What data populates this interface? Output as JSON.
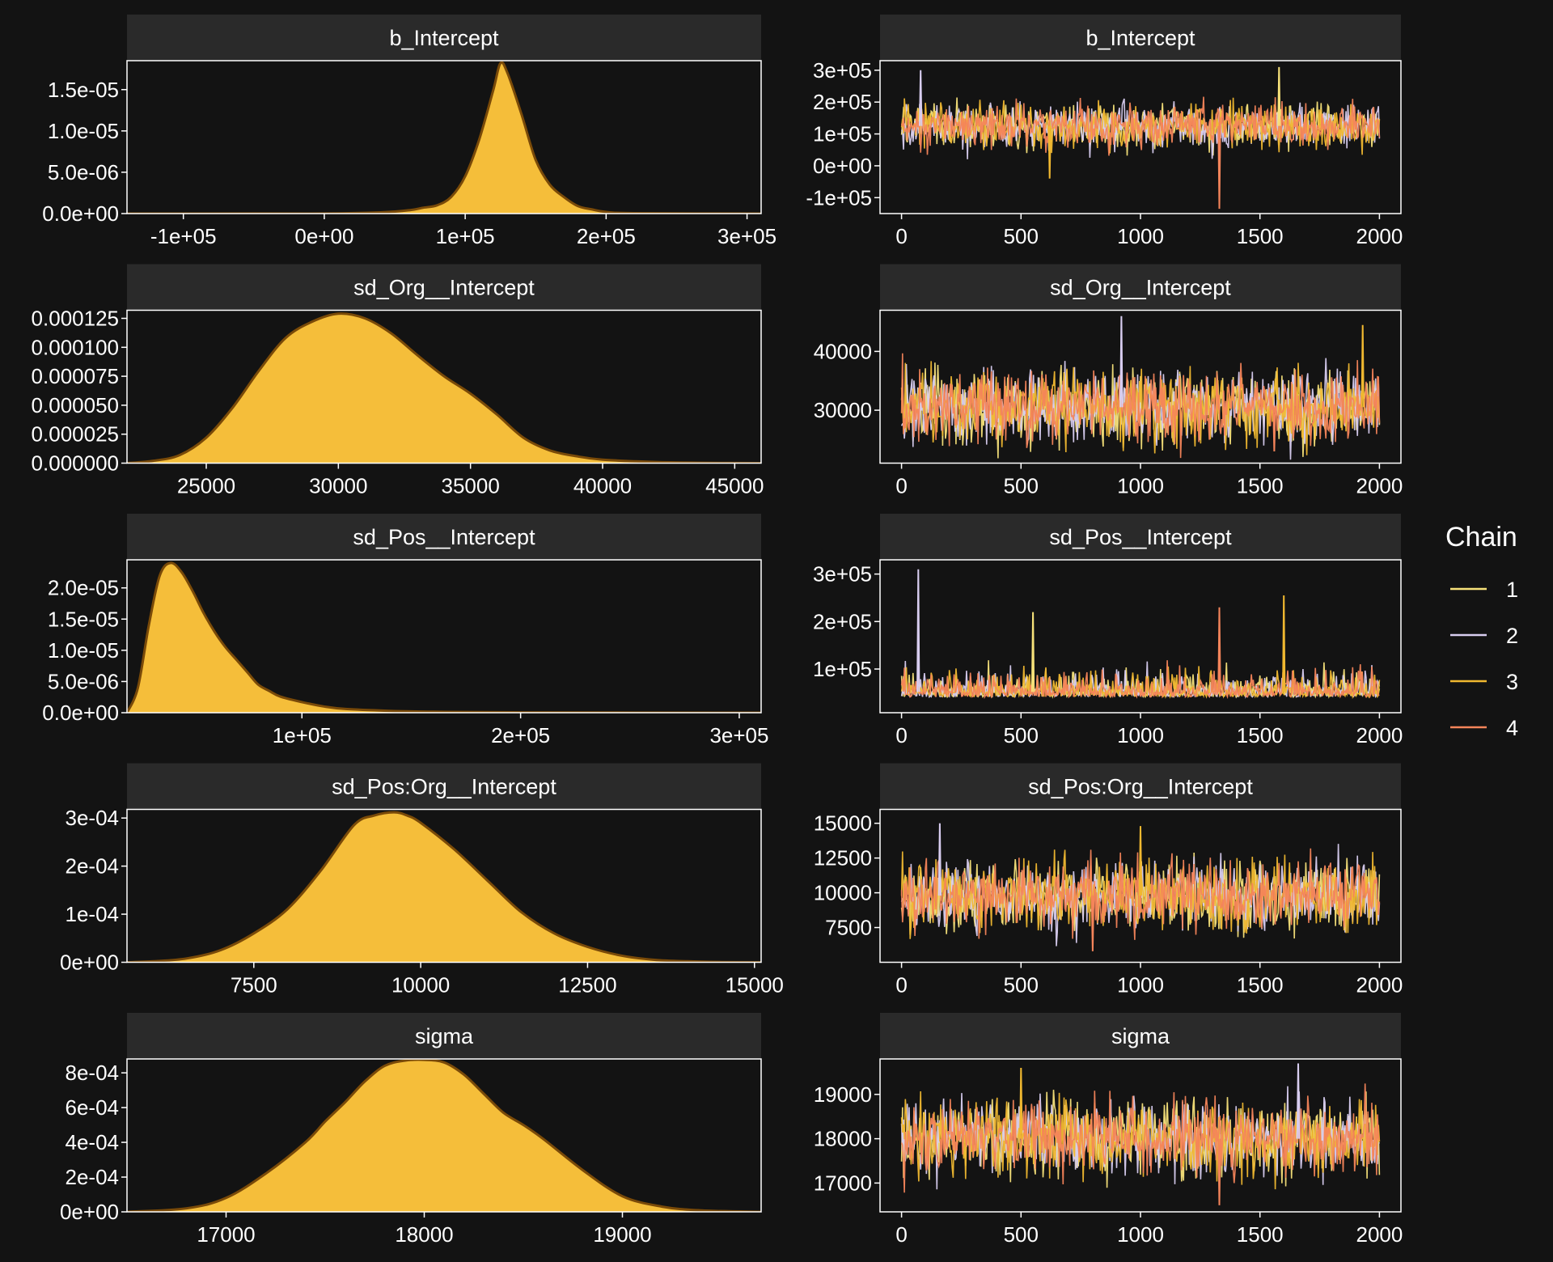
{
  "colors": {
    "background": "#131313",
    "strip": "#2a2a2a",
    "panel_border": "#ffffff",
    "density_fill": "#f5be3a",
    "density_line": "#7a4a08",
    "chain_colors": [
      "#f7e27a",
      "#d8cdf0",
      "#f0b830",
      "#f4845a"
    ]
  },
  "legend": {
    "title": "Chain",
    "entries": [
      "1",
      "2",
      "3",
      "4"
    ],
    "placement": "right"
  },
  "chart_data": [
    {
      "type": "area",
      "panel": "density",
      "title": "b_Intercept",
      "xlim": [
        -140000,
        310000
      ],
      "ylim": [
        0,
        1.85e-05
      ],
      "x_ticks": [
        -100000,
        0,
        100000,
        200000,
        300000
      ],
      "x_tick_labels": [
        "-1e+05",
        "0e+00",
        "1e+05",
        "2e+05",
        "3e+05"
      ],
      "y_ticks": [
        0,
        5e-06,
        1e-05,
        1.5e-05
      ],
      "y_tick_labels": [
        "0.0e+00",
        "5.0e-06",
        "1.0e-05",
        "1.5e-05"
      ],
      "x": [
        -140000,
        -50000,
        0,
        40000,
        60000,
        70000,
        80000,
        90000,
        100000,
        110000,
        120000,
        125000,
        130000,
        140000,
        150000,
        160000,
        170000,
        180000,
        190000,
        200000,
        220000,
        310000
      ],
      "y": [
        0,
        5e-09,
        1e-08,
        1.5e-07,
        4e-07,
        7e-07,
        1e-06,
        2e-06,
        4.5e-06,
        9e-06,
        1.5e-05,
        1.82e-05,
        1.7e-05,
        1.2e-05,
        6.5e-06,
        3.5e-06,
        2e-06,
        9e-07,
        5e-07,
        2e-07,
        5e-08,
        0
      ]
    },
    {
      "type": "line",
      "panel": "trace",
      "title": "b_Intercept",
      "xlim": [
        -90,
        2090
      ],
      "ylim": [
        -150000,
        330000
      ],
      "x_ticks": [
        0,
        500,
        1000,
        1500,
        2000
      ],
      "x_tick_labels": [
        "0",
        "500",
        "1000",
        "1500",
        "2000"
      ],
      "y_ticks": [
        -100000,
        0,
        100000,
        200000,
        300000
      ],
      "y_tick_labels": [
        "-1e+05",
        "0e+00",
        "1e+05",
        "2e+05",
        "3e+05"
      ],
      "iterations": 2000,
      "center": 125000,
      "spread": 35000,
      "spikes": [
        {
          "x": 80,
          "y": 300000
        },
        {
          "x": 620,
          "y": -40000
        },
        {
          "x": 1330,
          "y": -135000
        },
        {
          "x": 1580,
          "y": 310000
        }
      ]
    },
    {
      "type": "area",
      "panel": "density",
      "title": "sd_Org__Intercept",
      "xlim": [
        22000,
        46000
      ],
      "ylim": [
        0,
        0.000132
      ],
      "x_ticks": [
        25000,
        30000,
        35000,
        40000,
        45000
      ],
      "x_tick_labels": [
        "25000",
        "30000",
        "35000",
        "40000",
        "45000"
      ],
      "y_ticks": [
        0,
        2.5e-05,
        5e-05,
        7.5e-05,
        0.0001,
        0.000125
      ],
      "y_tick_labels": [
        "0.000000",
        "0.000025",
        "0.000050",
        "0.000075",
        "0.000100",
        "0.000125"
      ],
      "x": [
        22000,
        23000,
        24000,
        25000,
        26000,
        27000,
        28000,
        29000,
        30000,
        31000,
        32000,
        33000,
        34000,
        35000,
        36000,
        37000,
        38000,
        39000,
        40000,
        42000,
        44000,
        46000
      ],
      "y": [
        0,
        2e-06,
        7e-06,
        2.2e-05,
        4.8e-05,
        8e-05,
        0.000108,
        0.000122,
        0.000129,
        0.000125,
        0.000112,
        9.3e-05,
        7.5e-05,
        6e-05,
        4.2e-05,
        2.2e-05,
        1.1e-05,
        6e-06,
        3e-06,
        1e-06,
        3e-07,
        0
      ]
    },
    {
      "type": "line",
      "panel": "trace",
      "title": "sd_Org__Intercept",
      "xlim": [
        -90,
        2090
      ],
      "ylim": [
        21000,
        47000
      ],
      "x_ticks": [
        0,
        500,
        1000,
        1500,
        2000
      ],
      "x_tick_labels": [
        "0",
        "500",
        "1000",
        "1500",
        "2000"
      ],
      "y_ticks": [
        30000,
        40000
      ],
      "y_tick_labels": [
        "30000",
        "40000"
      ],
      "iterations": 2000,
      "center": 30500,
      "spread": 3200,
      "spikes": [
        {
          "x": 920,
          "y": 46000
        },
        {
          "x": 1930,
          "y": 44500
        },
        {
          "x": 1560,
          "y": 23000
        }
      ]
    },
    {
      "type": "area",
      "panel": "density",
      "title": "sd_Pos__Intercept",
      "xlim": [
        20000,
        310000
      ],
      "ylim": [
        0,
        2.45e-05
      ],
      "x_ticks": [
        100000,
        200000,
        300000
      ],
      "x_tick_labels": [
        "1e+05",
        "2e+05",
        "3e+05"
      ],
      "y_ticks": [
        0,
        5e-06,
        1e-05,
        1.5e-05,
        2e-05
      ],
      "y_tick_labels": [
        "0.0e+00",
        "5.0e-06",
        "1.0e-05",
        "1.5e-05",
        "2.0e-05"
      ],
      "x": [
        20000,
        25000,
        30000,
        35000,
        40000,
        45000,
        50000,
        55000,
        60000,
        65000,
        70000,
        75000,
        80000,
        85000,
        90000,
        100000,
        110000,
        120000,
        140000,
        160000,
        200000,
        310000
      ],
      "y": [
        0,
        4e-06,
        1.4e-05,
        2.2e-05,
        2.4e-05,
        2.25e-05,
        1.95e-05,
        1.6e-05,
        1.3e-05,
        1.05e-05,
        8.5e-06,
        6.5e-06,
        4.5e-06,
        3.5e-06,
        2.6e-06,
        1.7e-06,
        1e-06,
        6e-07,
        3e-07,
        1.5e-07,
        5e-08,
        0
      ]
    },
    {
      "type": "line",
      "panel": "trace",
      "title": "sd_Pos__Intercept",
      "xlim": [
        -90,
        2090
      ],
      "ylim": [
        8000,
        330000
      ],
      "x_ticks": [
        0,
        500,
        1000,
        1500,
        2000
      ],
      "x_tick_labels": [
        "0",
        "500",
        "1000",
        "1500",
        "2000"
      ],
      "y_ticks": [
        100000,
        200000,
        300000
      ],
      "y_tick_labels": [
        "1e+05",
        "2e+05",
        "3e+05"
      ],
      "iterations": 2000,
      "center": 52000,
      "spread": 18000,
      "skew": "right",
      "spikes": [
        {
          "x": 70,
          "y": 310000
        },
        {
          "x": 1600,
          "y": 255000
        },
        {
          "x": 1330,
          "y": 230000
        },
        {
          "x": 550,
          "y": 220000
        }
      ]
    },
    {
      "type": "area",
      "panel": "density",
      "title": "sd_Pos:Org__Intercept",
      "xlim": [
        5600,
        15100
      ],
      "ylim": [
        0,
        0.000318
      ],
      "x_ticks": [
        7500,
        10000,
        12500,
        15000
      ],
      "x_tick_labels": [
        "7500",
        "10000",
        "12500",
        "15000"
      ],
      "y_ticks": [
        0,
        0.0001,
        0.0002,
        0.0003
      ],
      "y_tick_labels": [
        "0e+00",
        "1e-04",
        "2e-04",
        "3e-04"
      ],
      "x": [
        5600,
        6000,
        6500,
        7000,
        7500,
        8000,
        8500,
        9000,
        9300,
        9600,
        9800,
        10000,
        10500,
        11000,
        11500,
        12000,
        12500,
        13000,
        13500,
        14000,
        14500,
        15100
      ],
      "y": [
        0,
        2e-06,
        8e-06,
        2.5e-05,
        6e-05,
        0.00011,
        0.00019,
        0.000285,
        0.000305,
        0.000312,
        0.000305,
        0.00029,
        0.000235,
        0.00017,
        0.000105,
        6e-05,
        3.2e-05,
        1.4e-05,
        5e-06,
        2e-06,
        5e-07,
        0
      ]
    },
    {
      "type": "line",
      "panel": "trace",
      "title": "sd_Pos:Org__Intercept",
      "xlim": [
        -90,
        2090
      ],
      "ylim": [
        5000,
        16000
      ],
      "x_ticks": [
        0,
        500,
        1000,
        1500,
        2000
      ],
      "x_tick_labels": [
        "0",
        "500",
        "1000",
        "1500",
        "2000"
      ],
      "y_ticks": [
        7500,
        10000,
        12500,
        15000
      ],
      "y_tick_labels": [
        "7500",
        "10000",
        "12500",
        "15000"
      ],
      "iterations": 2000,
      "center": 9800,
      "spread": 1250,
      "spikes": [
        {
          "x": 160,
          "y": 15000
        },
        {
          "x": 1000,
          "y": 14800
        },
        {
          "x": 800,
          "y": 5800
        }
      ]
    },
    {
      "type": "area",
      "panel": "density",
      "title": "sigma",
      "xlim": [
        16500,
        19700
      ],
      "ylim": [
        0,
        0.00088
      ],
      "x_ticks": [
        17000,
        18000,
        19000
      ],
      "x_tick_labels": [
        "17000",
        "18000",
        "19000"
      ],
      "y_ticks": [
        0,
        0.0002,
        0.0004,
        0.0006,
        0.0008
      ],
      "y_tick_labels": [
        "0e+00",
        "2e-04",
        "4e-04",
        "6e-04",
        "8e-04"
      ],
      "x": [
        16500,
        16800,
        17000,
        17200,
        17400,
        17500,
        17600,
        17700,
        17800,
        17900,
        18000,
        18100,
        18200,
        18300,
        18400,
        18500,
        18600,
        18800,
        19000,
        19200,
        19400,
        19700
      ],
      "y": [
        0,
        2e-05,
        8e-05,
        0.00022,
        0.0004,
        0.00052,
        0.00063,
        0.00075,
        0.00084,
        0.00087,
        0.000875,
        0.00086,
        0.00079,
        0.00068,
        0.00057,
        0.0005,
        0.00042,
        0.00024,
        9e-05,
        3e-05,
        8e-06,
        0
      ]
    },
    {
      "type": "line",
      "panel": "trace",
      "title": "sigma",
      "xlim": [
        -90,
        2090
      ],
      "ylim": [
        16350,
        19800
      ],
      "x_ticks": [
        0,
        500,
        1000,
        1500,
        2000
      ],
      "x_tick_labels": [
        "0",
        "500",
        "1000",
        "1500",
        "2000"
      ],
      "y_ticks": [
        17000,
        18000,
        19000
      ],
      "y_tick_labels": [
        "17000",
        "18000",
        "19000"
      ],
      "iterations": 2000,
      "center": 18000,
      "spread": 420,
      "spikes": [
        {
          "x": 1660,
          "y": 19700
        },
        {
          "x": 500,
          "y": 19600
        },
        {
          "x": 1330,
          "y": 16500
        }
      ]
    }
  ]
}
